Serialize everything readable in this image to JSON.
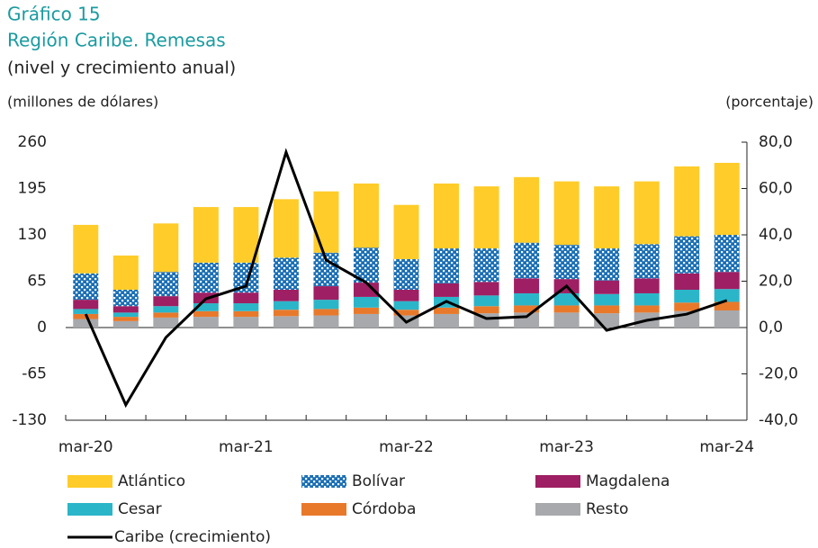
{
  "chart_data": {
    "type": "bar",
    "stacked": true,
    "title": "Gráfico 15",
    "subtitle": "Región Caribe. Remesas",
    "note": "(nivel y crecimiento anual)",
    "ylabel": "(millones de dólares)",
    "y2label": "(porcentaje)",
    "categories": [
      "mar-20",
      null,
      null,
      null,
      "mar-21",
      null,
      null,
      null,
      "mar-22",
      null,
      null,
      null,
      "mar-23",
      null,
      null,
      null,
      "mar-24"
    ],
    "ylim": [
      -130,
      260
    ],
    "yticks": [
      -130,
      -65,
      0,
      65,
      130,
      195,
      260
    ],
    "y2lim": [
      -40,
      80
    ],
    "y2ticks": [
      {
        "value": -40,
        "label": "-40,0"
      },
      {
        "value": -20,
        "label": "-20,0"
      },
      {
        "value": 0,
        "label": "0,0"
      },
      {
        "value": 20,
        "label": "20,0"
      },
      {
        "value": 40,
        "label": "40,0"
      },
      {
        "value": 60,
        "label": "60,0"
      },
      {
        "value": 80,
        "label": "80,0"
      }
    ],
    "series": [
      {
        "name": "Resto",
        "color": "#a7a9ac",
        "values": [
          12,
          9,
          14,
          15,
          15,
          16,
          17,
          19,
          17,
          19,
          20,
          21,
          21,
          20,
          21,
          23,
          24
        ]
      },
      {
        "name": "Córdoba",
        "color": "#e8792b",
        "values": [
          7,
          6,
          7,
          8,
          8,
          9,
          9,
          9,
          8,
          9,
          10,
          10,
          10,
          11,
          10,
          12,
          12
        ]
      },
      {
        "name": "Cesar",
        "color": "#2bb5c9",
        "values": [
          7,
          6,
          9,
          11,
          11,
          12,
          13,
          15,
          12,
          15,
          15,
          17,
          17,
          16,
          17,
          18,
          18
        ]
      },
      {
        "name": "Magdalena",
        "color": "#9e1f63",
        "values": [
          13,
          9,
          14,
          15,
          15,
          16,
          19,
          20,
          16,
          19,
          19,
          21,
          20,
          19,
          21,
          23,
          24
        ]
      },
      {
        "name": "Bolívar",
        "color": "#1b6fb5",
        "hatch": "checker",
        "values": [
          37,
          23,
          34,
          42,
          42,
          45,
          47,
          49,
          43,
          49,
          47,
          50,
          48,
          45,
          48,
          52,
          52
        ]
      },
      {
        "name": "Atlántico",
        "color": "#ffcc29",
        "values": [
          68,
          48,
          68,
          78,
          78,
          82,
          86,
          90,
          76,
          91,
          87,
          92,
          89,
          87,
          88,
          98,
          101
        ]
      },
      {
        "name": "Caribe (crecimiento)",
        "color": "#000000",
        "type": "line",
        "axis": "y2",
        "values": [
          5.8,
          -33.4,
          -4.3,
          12.4,
          17.9,
          75.7,
          29.1,
          19.4,
          2.3,
          11.3,
          3.9,
          4.7,
          17.9,
          -1.2,
          3.1,
          5.8,
          11.7
        ]
      }
    ]
  }
}
